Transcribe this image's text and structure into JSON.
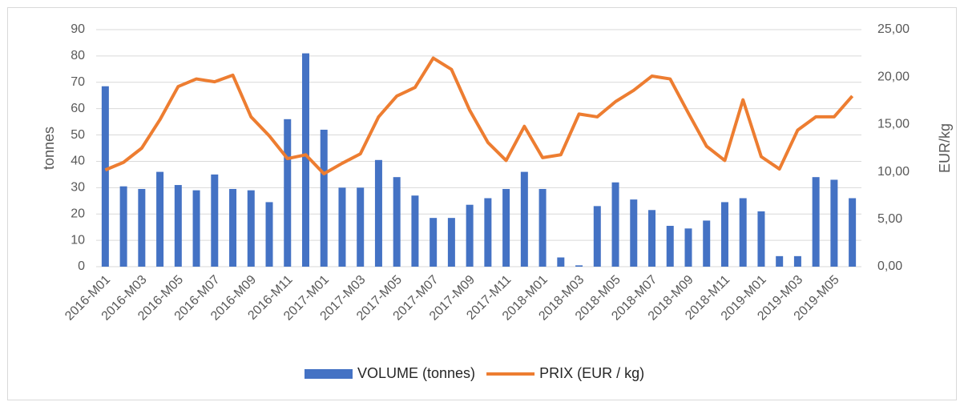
{
  "chart_data": {
    "type": "combo",
    "y_label": "tonnes",
    "y2_label": "EUR/kg",
    "categories": [
      "2016-M01",
      null,
      "2016-M03",
      null,
      "2016-M05",
      null,
      "2016-M07",
      null,
      "2016-M09",
      null,
      "2016-M11",
      null,
      "2017-M01",
      null,
      "2017-M03",
      null,
      "2017-M05",
      null,
      "2017-M07",
      null,
      "2017-M09",
      null,
      "2017-M11",
      null,
      "2018-M01",
      null,
      "2018-M03",
      null,
      "2018-M05",
      null,
      "2018-M07",
      null,
      "2018-M09",
      null,
      "2018-M11",
      null,
      "2019-M01",
      null,
      "2019-M03",
      null,
      "2019-M05",
      null
    ],
    "series": [
      {
        "name": "VOLUME (tonnes)",
        "type": "bar",
        "color": "#4472c4",
        "values": [
          68.5,
          30.5,
          29.5,
          36,
          31,
          29,
          35,
          29.5,
          29,
          24.5,
          56,
          81,
          52,
          30,
          30,
          40.5,
          34,
          27,
          18.5,
          18.5,
          23.5,
          26,
          29.5,
          36,
          29.5,
          3.5,
          0.5,
          23,
          32,
          25.5,
          21.5,
          15.5,
          14.5,
          17.5,
          24.5,
          26,
          21,
          4,
          4,
          34,
          33,
          26
        ]
      },
      {
        "name": "PRIX (EUR / kg)",
        "type": "line",
        "axis": "y2",
        "color": "#ed7d31",
        "values": [
          10.2,
          11.0,
          12.5,
          15.5,
          19.0,
          19.8,
          19.5,
          20.2,
          15.8,
          13.8,
          11.4,
          11.8,
          9.8,
          10.9,
          11.9,
          15.8,
          18.0,
          18.9,
          22.0,
          20.8,
          16.5,
          13.1,
          11.2,
          14.8,
          11.5,
          11.8,
          16.1,
          15.8,
          17.4,
          18.6,
          20.1,
          19.8,
          16.2,
          12.7,
          11.2,
          17.6,
          11.6,
          10.3,
          14.4,
          15.8,
          15.8,
          18.0
        ]
      }
    ],
    "ylim": [
      0,
      90
    ],
    "yticks": [
      0,
      10,
      20,
      30,
      40,
      50,
      60,
      70,
      80,
      90
    ],
    "y2lim": [
      0,
      25
    ],
    "y2ticks": [
      {
        "value": 0,
        "label": "0,00"
      },
      {
        "value": 5,
        "label": "5,00"
      },
      {
        "value": 10,
        "label": "10,00"
      },
      {
        "value": 15,
        "label": "15,00"
      },
      {
        "value": 20,
        "label": "20,00"
      },
      {
        "value": 25,
        "label": "25,00"
      }
    ],
    "grid": true,
    "legend": "bottom"
  }
}
